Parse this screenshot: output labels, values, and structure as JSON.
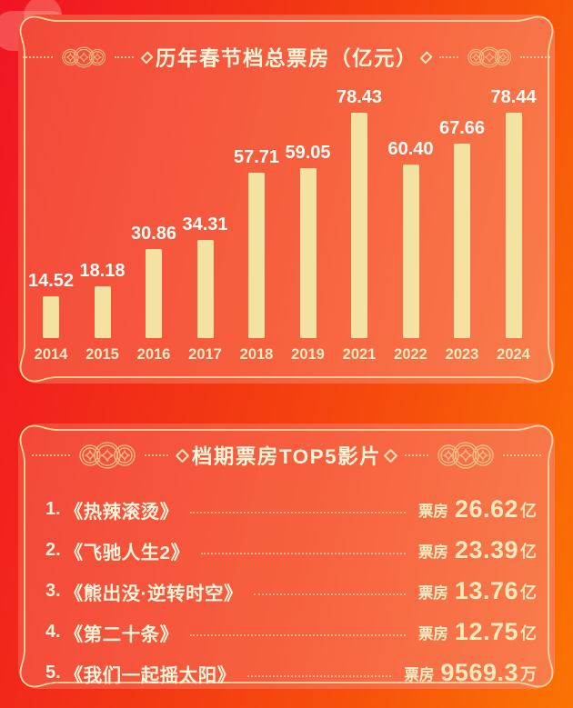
{
  "chart_data": {
    "type": "bar",
    "title": "历年春节档总票房（亿元）",
    "categories": [
      "2014",
      "2015",
      "2016",
      "2017",
      "2018",
      "2019",
      "2021",
      "2022",
      "2023",
      "2024"
    ],
    "values": [
      14.52,
      18.18,
      30.86,
      34.31,
      57.71,
      59.05,
      78.43,
      60.4,
      67.66,
      78.44
    ],
    "labels": [
      "14.52",
      "18.18",
      "30.86",
      "34.31",
      "57.71",
      "59.05",
      "78.43",
      "60.40",
      "67.66",
      "78.44"
    ],
    "ylim": [
      0,
      80
    ],
    "grid": false,
    "legend": false,
    "bar_color": "#f3e2a2",
    "value_label_color": "#fffdf6",
    "axis_label_color": "#f7e9c0"
  },
  "panel1": {
    "title": "历年春节档总票房（亿元）"
  },
  "panel2": {
    "title": "档期票房TOP5影片",
    "rows": [
      {
        "rank": "1.",
        "title": "《热辣滚烫》",
        "label": "票房",
        "value": "26.62",
        "unit": "亿"
      },
      {
        "rank": "2.",
        "title": "《飞驰人生2》",
        "label": "票房",
        "value": "23.39",
        "unit": "亿"
      },
      {
        "rank": "3.",
        "title": "《熊出没·逆转时空》",
        "label": "票房",
        "value": "13.76",
        "unit": "亿"
      },
      {
        "rank": "4.",
        "title": "《第二十条》",
        "label": "票房",
        "value": "12.75",
        "unit": "亿"
      },
      {
        "rank": "5.",
        "title": "《我们一起摇太阳》",
        "label": "票房",
        "value": "9569.3",
        "unit": "万"
      }
    ]
  },
  "colors": {
    "background_red": "#f11425",
    "background_orange": "#fb7303",
    "panel_red": "#f4483a",
    "panel_orange": "#f97d4c",
    "frame_gold": "#f6d79b",
    "bar_cream": "#f3e2a2",
    "text_cream": "#fdf3d8",
    "number_cream": "#f8e9bd"
  }
}
